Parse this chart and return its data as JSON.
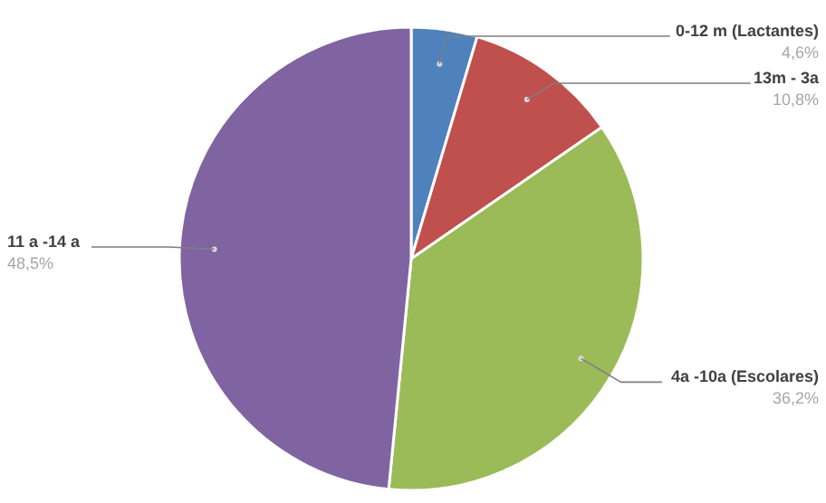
{
  "chart_data": {
    "type": "pie",
    "categories": [
      "0-12 m (Lactantes)",
      "13m - 3a",
      "4a -10a (Escolares)",
      "11 a -14 a"
    ],
    "values": [
      4.6,
      10.8,
      36.2,
      48.5
    ],
    "value_labels": [
      "4,6%",
      "10,8%",
      "36,2%",
      "48,5%"
    ],
    "colors": [
      "#4f81bd",
      "#c0504d",
      "#9bbb59",
      "#8064a2"
    ]
  }
}
